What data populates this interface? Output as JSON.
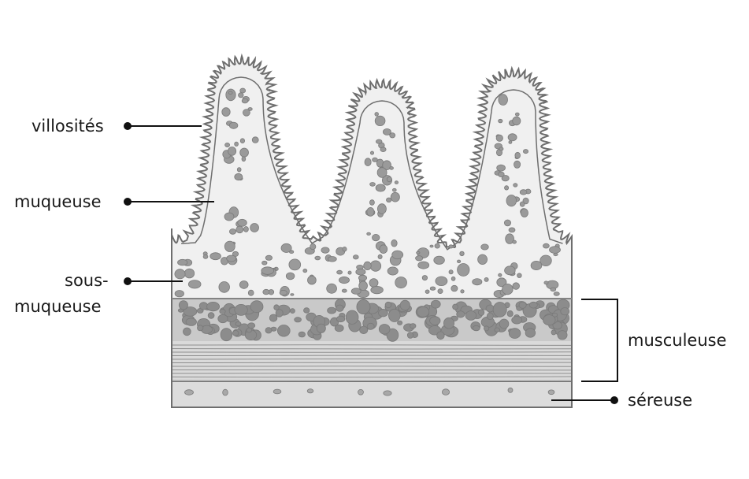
{
  "labels": {
    "villosites": "villosités",
    "muqueuse": "muqueuse",
    "sous_muqueuse_line1": "sous-",
    "sous_muqueuse_line2": "muqueuse",
    "musculeuse": "musculeuse",
    "sereuse": "séreuse"
  },
  "colors": {
    "outline": "#6e6e6e",
    "mucosa_fill": "#f0f0f0",
    "cell_fill": "#9a9a9a",
    "muscle_band": "#c4c4c4",
    "muscle_cells": "#8c8c8c",
    "serosa_fill": "#dcdcdc",
    "leader": "#111111"
  }
}
